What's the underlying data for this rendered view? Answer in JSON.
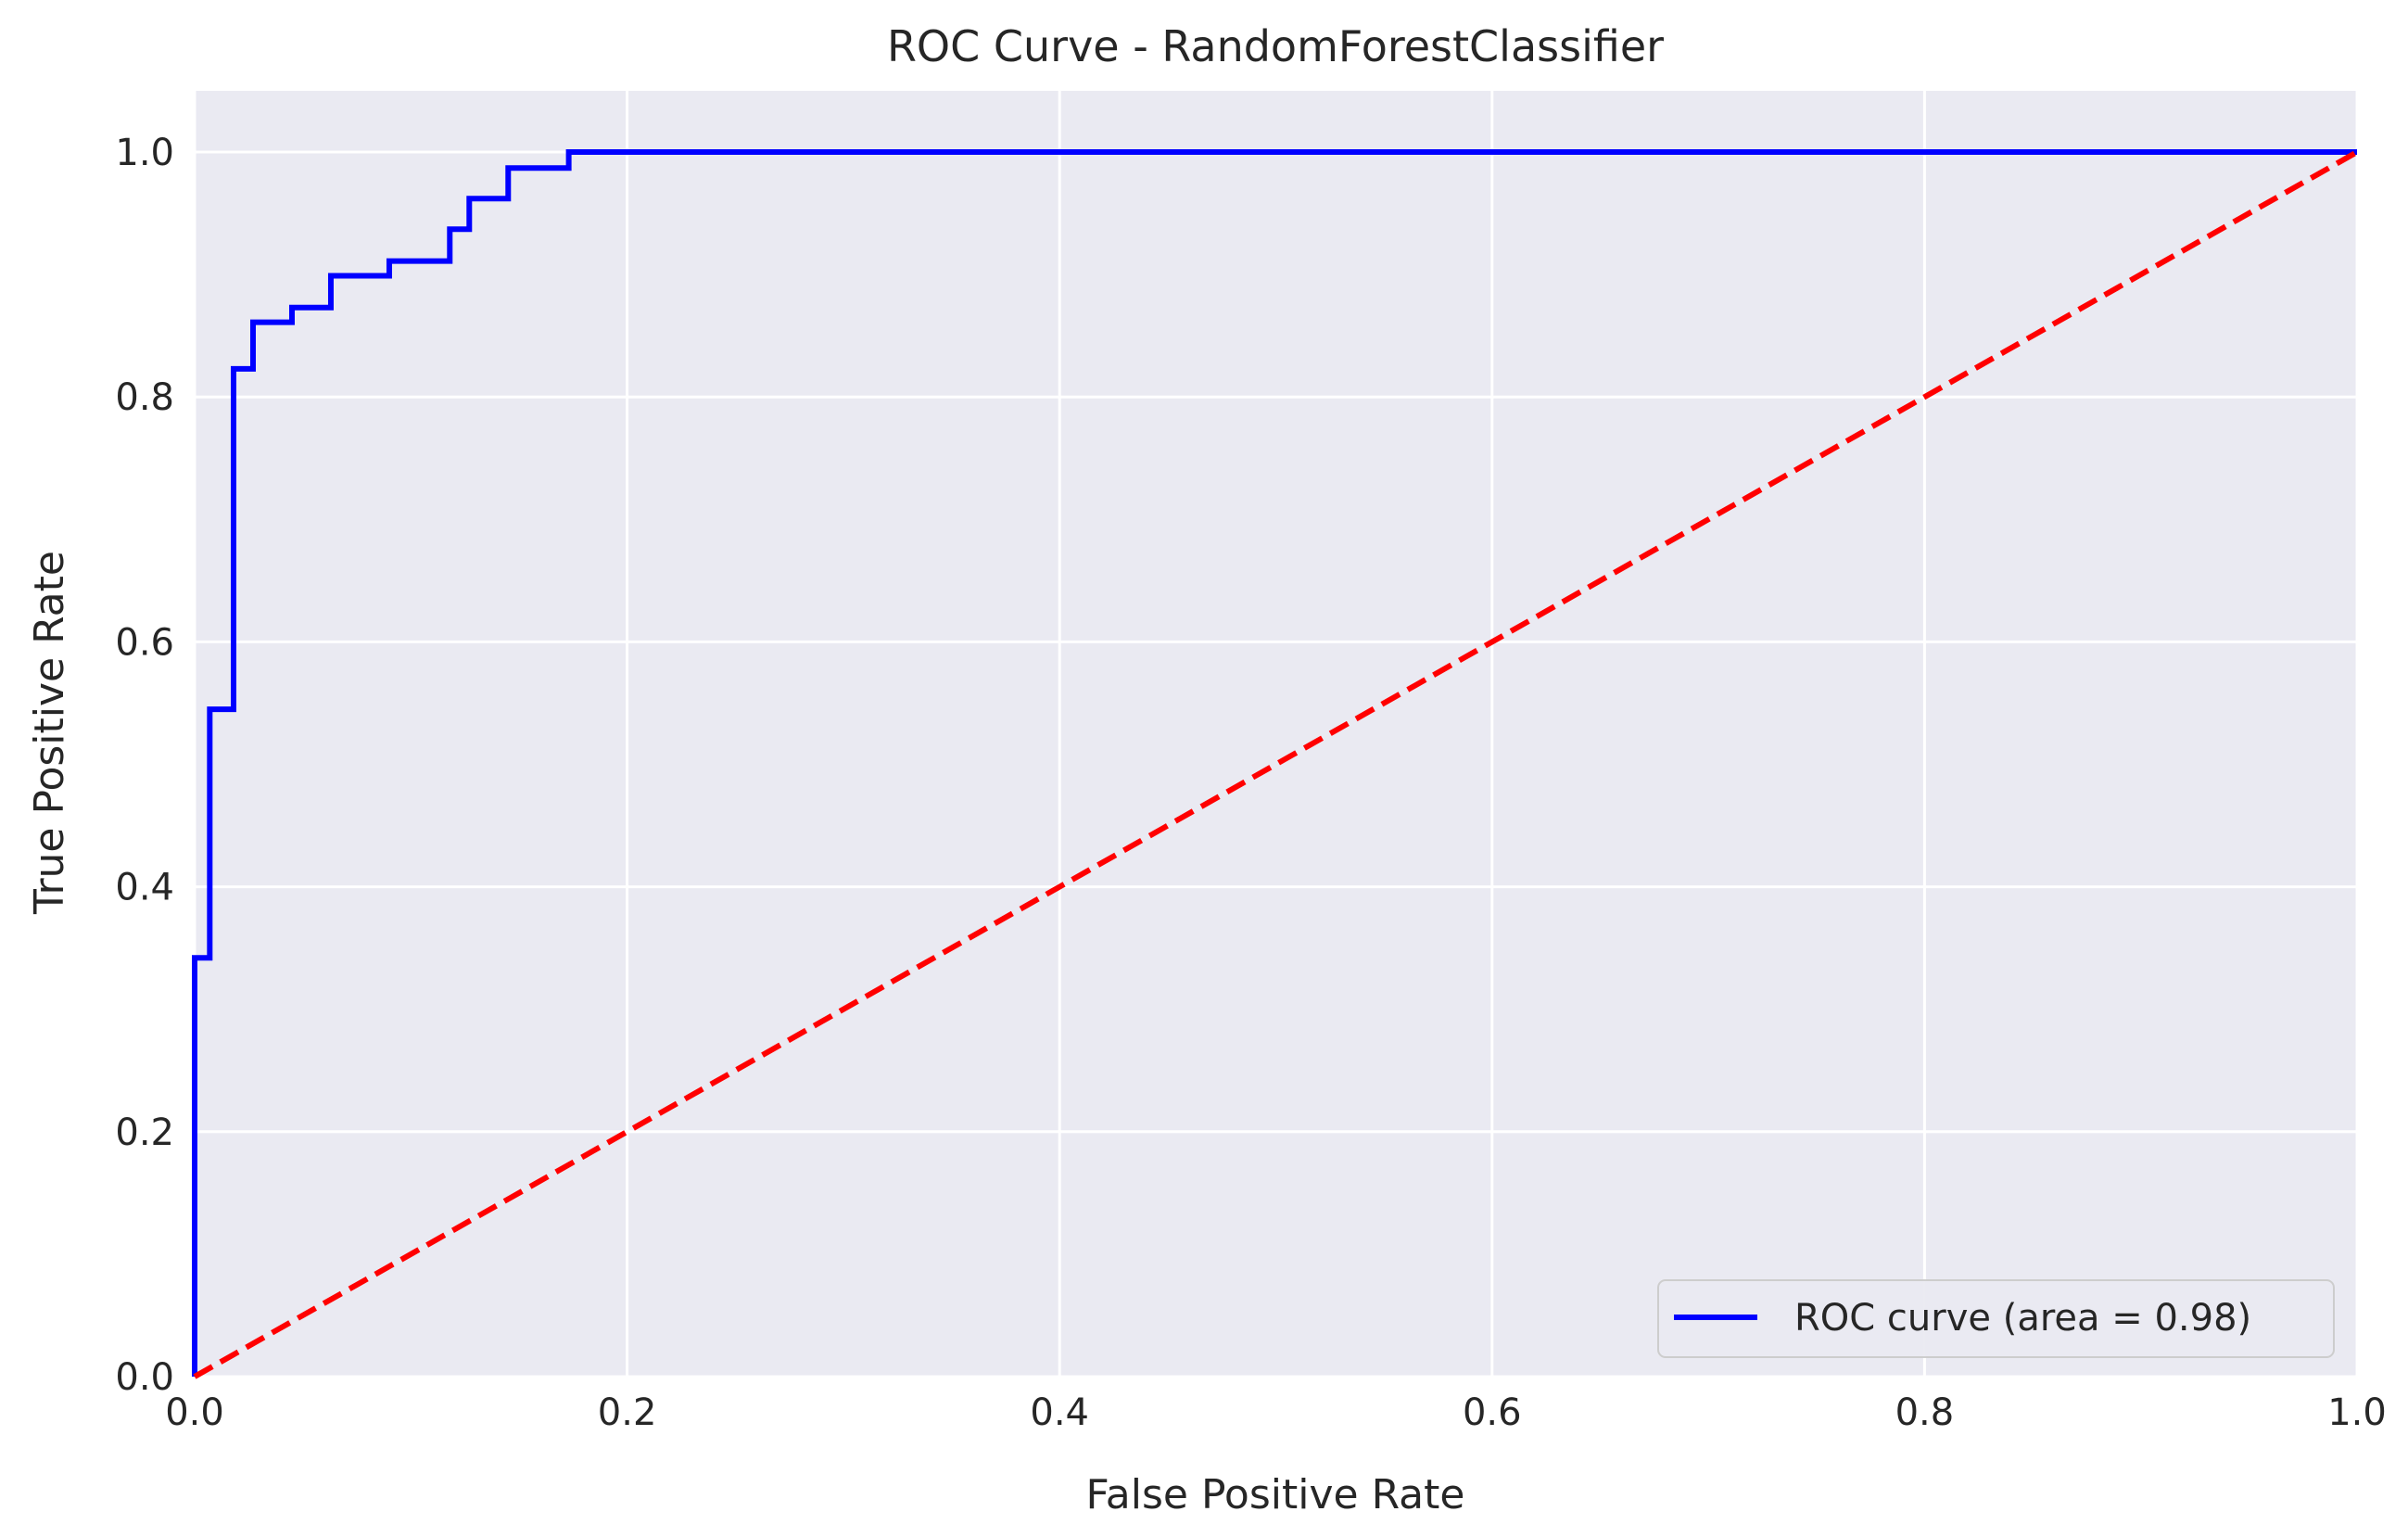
{
  "chart_data": {
    "type": "line",
    "title": "ROC Curve - RandomForestClassifier",
    "xlabel": "False Positive Rate",
    "ylabel": "True Positive Rate",
    "xlim": [
      0.0,
      1.0
    ],
    "ylim": [
      0.0,
      1.05
    ],
    "xticks": [
      "0.0",
      "0.2",
      "0.4",
      "0.6",
      "0.8",
      "1.0"
    ],
    "yticks": [
      "0.0",
      "0.2",
      "0.4",
      "0.6",
      "0.8",
      "1.0"
    ],
    "grid": true,
    "legend_position": "lower-right",
    "series": [
      {
        "name": "ROC curve (area = 0.98)",
        "color": "#0000ff",
        "style": "solid",
        "x": [
          0.0,
          0.0,
          0.007,
          0.007,
          0.018,
          0.018,
          0.027,
          0.027,
          0.045,
          0.045,
          0.063,
          0.063,
          0.09,
          0.09,
          0.118,
          0.118,
          0.127,
          0.127,
          0.145,
          0.145,
          0.173,
          0.173,
          1.0
        ],
        "y": [
          0.0,
          0.342,
          0.342,
          0.545,
          0.545,
          0.823,
          0.823,
          0.861,
          0.861,
          0.873,
          0.873,
          0.899,
          0.899,
          0.911,
          0.911,
          0.937,
          0.937,
          0.962,
          0.962,
          0.987,
          0.987,
          1.0,
          1.0
        ]
      },
      {
        "color": "#ff0000",
        "style": "dashed",
        "x": [
          0.0,
          1.0
        ],
        "y": [
          0.0,
          1.0
        ]
      }
    ]
  }
}
